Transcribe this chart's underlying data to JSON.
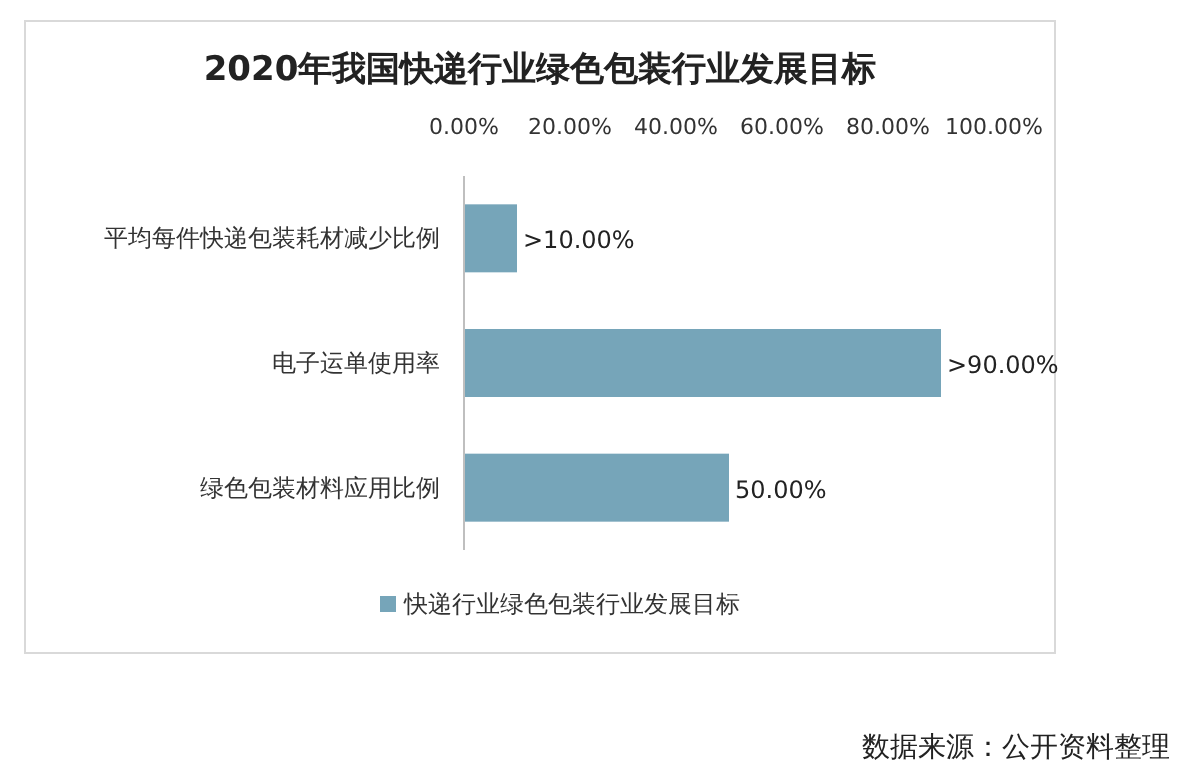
{
  "chart_data": {
    "type": "bar",
    "orientation": "horizontal",
    "title": "2020年我国快递行业绿色包装行业发展目标",
    "categories": [
      "平均每件快递包装耗材减少比例",
      "电子运单使用率",
      "绿色包装材料应用比例"
    ],
    "series": [
      {
        "name": "快递行业绿色包装行业发展目标",
        "color": "#76a5b9",
        "values": [
          10,
          90,
          50
        ],
        "value_labels": [
          ">10.00%",
          ">90.00%",
          "50.00%"
        ]
      }
    ],
    "xlim": [
      0,
      100
    ],
    "xticks": [
      {
        "value": 0,
        "label": "0.00%"
      },
      {
        "value": 20,
        "label": "20.00%"
      },
      {
        "value": 40,
        "label": "40.00%"
      },
      {
        "value": 60,
        "label": "60.00%"
      },
      {
        "value": 80,
        "label": "80.00%"
      },
      {
        "value": 100,
        "label": "100.00%"
      }
    ],
    "legend": "bottom",
    "grid": false,
    "annotations": [
      "数据来源：公开资料整理"
    ]
  }
}
